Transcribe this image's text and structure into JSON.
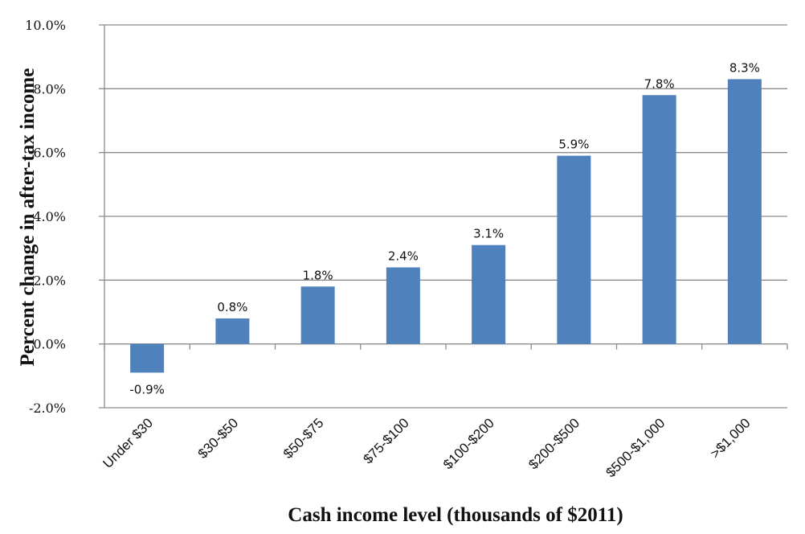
{
  "chart_data": {
    "type": "bar",
    "title": "",
    "xlabel": "Cash income level (thousands of $2011)",
    "ylabel": "Percent change in after-tax income",
    "categories": [
      "Under $30",
      "$30-$50",
      "$50-$75",
      "$75-$100",
      "$100-$200",
      "$200-$500",
      "$500-$1,000",
      ">$1,000"
    ],
    "values": [
      -0.9,
      0.8,
      1.8,
      2.4,
      3.1,
      5.9,
      7.8,
      8.3
    ],
    "data_labels": [
      "-0.9%",
      "0.8%",
      "1.8%",
      "2.4%",
      "3.1%",
      "5.9%",
      "7.8%",
      "8.3%"
    ],
    "ylim": [
      -2,
      10
    ],
    "yticks": [
      -2,
      0,
      2,
      4,
      6,
      8,
      10
    ],
    "ytick_labels": [
      "-2.0%",
      "0.0%",
      "2.0%",
      "4.0%",
      "6.0%",
      "8.0%",
      "10.0%"
    ],
    "grid": true,
    "legend": "none",
    "bar_color": "#4F81BD"
  }
}
